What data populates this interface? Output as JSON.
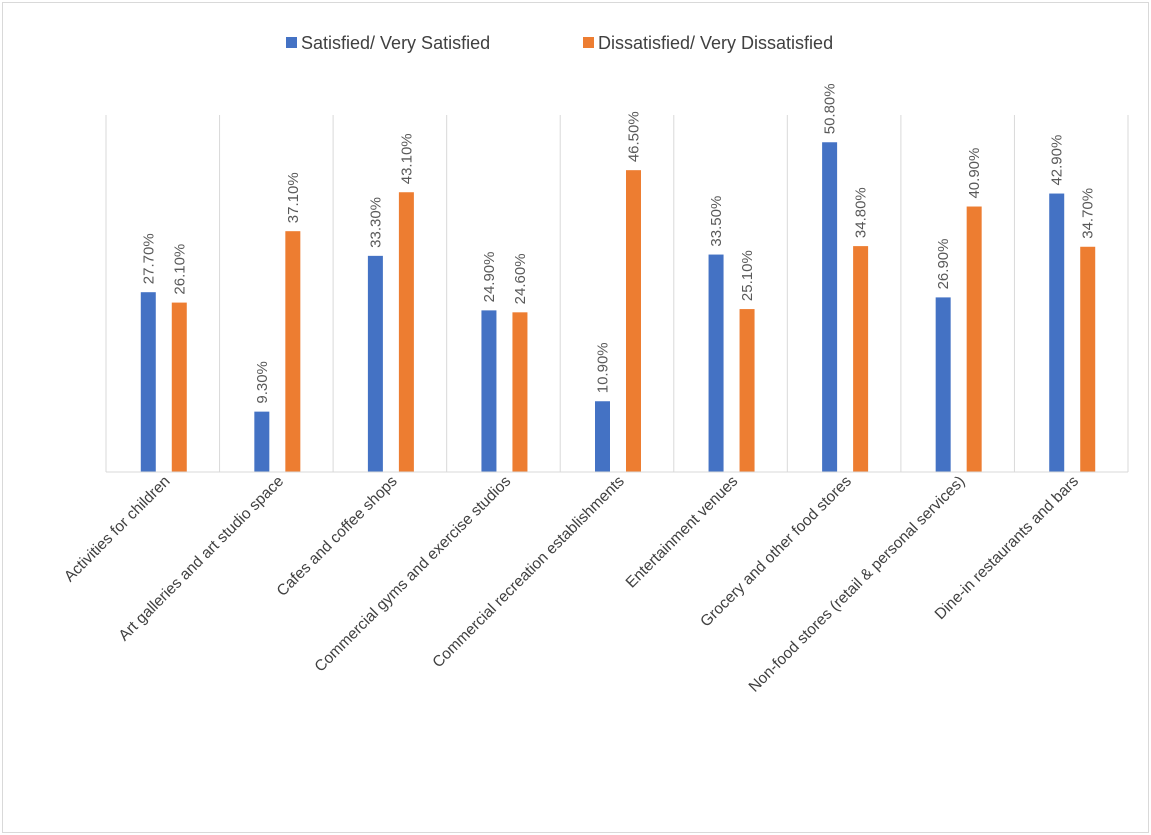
{
  "chart_data": {
    "type": "bar",
    "title": "",
    "xlabel": "",
    "ylabel": "",
    "ylim": [
      0,
      55
    ],
    "grid": "vertical-category-separators",
    "legend": "top-center",
    "categories": [
      "Activities for children",
      "Art galleries and art studio space",
      "Cafes and coffee shops",
      "Commercial gyms and exercise studios",
      "Commercial recreation establishments",
      "Entertainment venues",
      "Grocery and other food stores",
      "Non-food stores (retail & personal services)",
      "Dine-in restaurants and bars"
    ],
    "series": [
      {
        "name": "Satisfied/ Very Satisfied",
        "color": "#4472c4",
        "values": [
          27.7,
          9.3,
          33.3,
          24.9,
          10.9,
          33.5,
          50.8,
          26.9,
          42.9
        ],
        "labels": [
          "27.70%",
          "9.30%",
          "33.30%",
          "24.90%",
          "10.90%",
          "33.50%",
          "50.80%",
          "26.90%",
          "42.90%"
        ]
      },
      {
        "name": "Dissatisfied/ Very Dissatisfied",
        "color": "#ed7d31",
        "values": [
          26.1,
          37.1,
          43.1,
          24.6,
          46.5,
          25.1,
          34.8,
          40.9,
          34.7
        ],
        "labels": [
          "26.10%",
          "37.10%",
          "43.10%",
          "24.60%",
          "46.50%",
          "25.10%",
          "34.80%",
          "40.90%",
          "34.70%"
        ]
      }
    ]
  }
}
